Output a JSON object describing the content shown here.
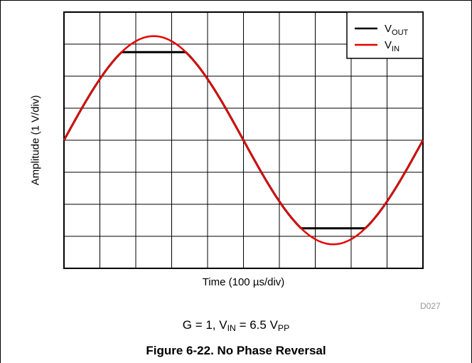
{
  "chart_data": {
    "type": "line",
    "xlabel": "Time (100 µs/div)",
    "ylabel": "Amplitude (1 V/div)",
    "grid": true,
    "x_divisions": 10,
    "y_divisions": 8,
    "xlim": [
      0,
      10
    ],
    "ylim": [
      -4,
      4
    ],
    "legend_position": "top-right",
    "series": [
      {
        "name": "VOUT",
        "name_main": "V",
        "name_sub": "OUT",
        "color": "#000000",
        "waveform": "sine clipped",
        "amplitude": 3.25,
        "clip_high": 2.75,
        "clip_low": -2.75
      },
      {
        "name": "VIN",
        "name_main": "V",
        "name_sub": "IN",
        "color": "#e60000",
        "waveform": "sine",
        "amplitude": 3.25
      }
    ],
    "code": "D027"
  },
  "condition": {
    "prefix": "G = 1, V",
    "vin_sub": "IN",
    "middle": " = 6.5 V",
    "vpp_sub": "PP"
  },
  "caption": "Figure 6-22. No Phase Reversal"
}
